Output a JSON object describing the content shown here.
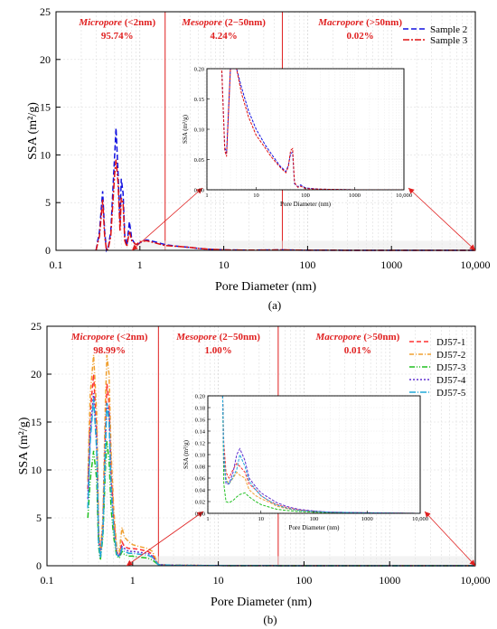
{
  "chart_data": [
    {
      "type": "line",
      "panel_label": "(a)",
      "xlabel": "Pore Diameter (nm)",
      "ylabel": "SSA (m²/g)",
      "xscale": "log",
      "xlim": [
        0.1,
        10000
      ],
      "ylim": [
        0,
        25
      ],
      "x_ticks": [
        "0.1",
        "1",
        "10",
        "100",
        "1000",
        "10,000"
      ],
      "y_ticks": [
        "0",
        "5",
        "10",
        "15",
        "20",
        "25"
      ],
      "grid": true,
      "legend_position": "top-right",
      "boundaries": [
        2,
        50
      ],
      "regions": [
        {
          "name": "Micropore",
          "range": " (<2nm)",
          "percent": "95.74%"
        },
        {
          "name": "Mesopore",
          "range": " (2−50nm)",
          "percent": "4.24%"
        },
        {
          "name": "Macropore",
          "range": " (>50nm)",
          "percent": "0.02%"
        }
      ],
      "series": [
        {
          "name": "Sample 2",
          "color": "#1010e0",
          "dash": "6,3",
          "x": [
            0.3,
            0.33,
            0.36,
            0.38,
            0.4,
            0.42,
            0.45,
            0.5,
            0.52,
            0.55,
            0.58,
            0.6,
            0.63,
            0.66,
            0.7,
            0.75,
            0.8,
            0.9,
            1.0,
            1.2,
            1.5,
            2.0,
            3,
            4,
            5,
            7,
            10,
            20,
            50,
            100,
            1000,
            10000
          ],
          "y": [
            0,
            2,
            6.2,
            2,
            0,
            0.3,
            2,
            10,
            12.8,
            8,
            3,
            7.5,
            6,
            1.5,
            0.5,
            3,
            1.2,
            0.5,
            0.8,
            1.1,
            0.9,
            0.6,
            0.4,
            0.3,
            0.2,
            0.1,
            0.05,
            0.02,
            0.05,
            0.01,
            0,
            0
          ]
        },
        {
          "name": "Sample 3",
          "color": "#e01010",
          "dash": "7,2,2,2",
          "x": [
            0.3,
            0.33,
            0.36,
            0.38,
            0.4,
            0.42,
            0.45,
            0.5,
            0.52,
            0.55,
            0.58,
            0.6,
            0.63,
            0.66,
            0.7,
            0.75,
            0.8,
            0.9,
            1.0,
            1.2,
            1.5,
            2.0,
            3,
            4,
            5,
            7,
            10,
            20,
            50,
            100,
            1000,
            10000
          ],
          "y": [
            0,
            1.5,
            5.3,
            1.5,
            0,
            0.2,
            1.5,
            8,
            9.5,
            7,
            2,
            5.5,
            5,
            1,
            0.4,
            2,
            1,
            0.6,
            0.9,
            1,
            0.8,
            0.5,
            0.4,
            0.3,
            0.2,
            0.1,
            0.05,
            0.02,
            0.05,
            0.01,
            0,
            0
          ]
        }
      ],
      "inset": {
        "xlabel": "Pore Diameter (nm)",
        "ylabel": "SSA (m²/g)",
        "xlim": [
          1,
          10000
        ],
        "ylim": [
          0,
          0.2
        ],
        "x_ticks": [
          "1",
          "10",
          "100",
          "1000",
          "10,000"
        ],
        "y_ticks": [
          "0.00",
          "0.05",
          "0.10",
          "0.15",
          "0.20"
        ],
        "series": [
          {
            "name": "Sample 2",
            "color": "#1010e0",
            "x": [
              1.8,
              2,
              2.3,
              2.5,
              3,
              3.5,
              4,
              5,
              7,
              10,
              15,
              20,
              30,
              40,
              45,
              50,
              55,
              60,
              70,
              80,
              100,
              200,
              1000,
              10000
            ],
            "y": [
              0.2,
              0.2,
              0.07,
              0.06,
              0.2,
              0.2,
              0.2,
              0.17,
              0.13,
              0.1,
              0.075,
              0.06,
              0.04,
              0.03,
              0.04,
              0.06,
              0.062,
              0.01,
              0.005,
              0.008,
              0.003,
              0.001,
              0,
              0
            ]
          },
          {
            "name": "Sample 3",
            "color": "#e01010",
            "x": [
              1.8,
              2,
              2.3,
              2.5,
              3,
              3.5,
              4,
              5,
              7,
              10,
              15,
              20,
              30,
              40,
              45,
              50,
              55,
              60,
              70,
              80,
              100,
              200,
              1000,
              10000
            ],
            "y": [
              0.2,
              0.2,
              0.065,
              0.055,
              0.2,
              0.2,
              0.2,
              0.16,
              0.12,
              0.09,
              0.07,
              0.055,
              0.038,
              0.028,
              0.038,
              0.065,
              0.068,
              0.012,
              0.004,
              0.006,
              0.002,
              0.001,
              0,
              0
            ]
          }
        ]
      }
    },
    {
      "type": "line",
      "panel_label": "(b)",
      "xlabel": "Pore Diameter (nm)",
      "ylabel": "SSA (m²/g)",
      "xscale": "log",
      "xlim": [
        0.1,
        10000
      ],
      "ylim": [
        0,
        25
      ],
      "x_ticks": [
        "0.1",
        "1",
        "10",
        "100",
        "1000",
        "10,000"
      ],
      "y_ticks": [
        "0",
        "5",
        "10",
        "15",
        "20",
        "25"
      ],
      "grid": true,
      "legend_position": "top-right",
      "boundaries": [
        2,
        50
      ],
      "regions": [
        {
          "name": "Micropore",
          "range": " (<2nm)",
          "percent": "98.99%"
        },
        {
          "name": "Mesopore",
          "range": " (2−50nm)",
          "percent": "1.00%"
        },
        {
          "name": "Macropore",
          "range": " (>50nm)",
          "percent": "0.01%"
        }
      ],
      "series": [
        {
          "name": "DJ57-1",
          "color": "#ff3030",
          "dash": "5,3",
          "x": [
            0.3,
            0.32,
            0.35,
            0.38,
            0.4,
            0.42,
            0.45,
            0.48,
            0.5,
            0.53,
            0.56,
            0.6,
            0.65,
            0.7,
            0.75,
            0.8,
            0.9,
            1.0,
            1.2,
            1.5,
            1.7,
            2.0,
            3,
            10,
            100,
            10000
          ],
          "y": [
            8,
            16,
            20,
            14,
            3,
            1,
            4,
            14,
            19,
            17,
            10,
            5,
            1.5,
            1,
            2.5,
            2,
            1.8,
            1.8,
            1.7,
            1.5,
            1.2,
            0.1,
            0.05,
            0.02,
            0,
            0
          ]
        },
        {
          "name": "DJ57-2",
          "color": "#f0a030",
          "dash": "5,2,1,2",
          "x": [
            0.3,
            0.32,
            0.35,
            0.38,
            0.4,
            0.42,
            0.45,
            0.48,
            0.5,
            0.53,
            0.56,
            0.6,
            0.65,
            0.7,
            0.75,
            0.8,
            0.9,
            1.0,
            1.2,
            1.5,
            1.7,
            2.0,
            3,
            10,
            100,
            10000
          ],
          "y": [
            9,
            18,
            22,
            16,
            4,
            1.5,
            5,
            17,
            22,
            20,
            12,
            6,
            2,
            1.5,
            4,
            3,
            2.5,
            2.2,
            2,
            1.8,
            1.5,
            0.1,
            0.05,
            0.02,
            0,
            0
          ]
        },
        {
          "name": "DJ57-3",
          "color": "#20c020",
          "dash": "6,2,1,2,1,2",
          "x": [
            0.3,
            0.32,
            0.35,
            0.38,
            0.4,
            0.42,
            0.45,
            0.48,
            0.5,
            0.53,
            0.56,
            0.6,
            0.65,
            0.7,
            0.75,
            0.8,
            0.9,
            1.0,
            1.2,
            1.5,
            1.7,
            2.0,
            3,
            10,
            100,
            10000
          ],
          "y": [
            5,
            9,
            12,
            9,
            2,
            0.6,
            3,
            10,
            13,
            11,
            6,
            3,
            1,
            0.8,
            1.5,
            1.2,
            1,
            1,
            0.9,
            0.8,
            0.6,
            0.1,
            0.04,
            0.02,
            0,
            0
          ]
        },
        {
          "name": "DJ57-4",
          "color": "#6030d0",
          "dash": "2,2",
          "x": [
            0.3,
            0.32,
            0.35,
            0.38,
            0.4,
            0.42,
            0.45,
            0.48,
            0.5,
            0.53,
            0.56,
            0.6,
            0.65,
            0.7,
            0.75,
            0.8,
            0.9,
            1.0,
            1.2,
            1.5,
            1.7,
            2.0,
            3,
            10,
            100,
            10000
          ],
          "y": [
            7,
            14,
            18,
            13,
            3,
            1,
            4,
            13,
            17,
            16,
            9,
            4,
            1.3,
            1,
            2,
            1.8,
            1.5,
            1.5,
            1.4,
            1.3,
            1,
            0.1,
            0.05,
            0.02,
            0,
            0
          ]
        },
        {
          "name": "DJ57-5",
          "color": "#20a8d8",
          "dash": "7,2,1,2",
          "x": [
            0.3,
            0.32,
            0.35,
            0.38,
            0.4,
            0.42,
            0.45,
            0.48,
            0.5,
            0.53,
            0.56,
            0.6,
            0.65,
            0.7,
            0.75,
            0.8,
            0.9,
            1.0,
            1.2,
            1.5,
            1.7,
            2.0,
            3,
            10,
            100,
            10000
          ],
          "y": [
            6,
            13,
            17.5,
            12,
            2.5,
            0.8,
            3.5,
            12,
            17,
            15,
            8,
            4,
            1.2,
            0.9,
            1.8,
            1.5,
            1.3,
            1.3,
            1.2,
            1.1,
            0.9,
            0.1,
            0.04,
            0.02,
            0,
            0
          ]
        }
      ],
      "inset": {
        "xlabel": "Pore Diameter (nm)",
        "ylabel": "SSA (m²/g)",
        "xlim": [
          1,
          10000
        ],
        "ylim": [
          0,
          0.2
        ],
        "x_ticks": [
          "1",
          "10",
          "100",
          "1000",
          "10,000"
        ],
        "y_ticks": [
          "0.00",
          "0.02",
          "0.04",
          "0.06",
          "0.08",
          "0.10",
          "0.12",
          "0.14",
          "0.16",
          "0.18",
          "0.20"
        ],
        "series": [
          {
            "name": "DJ57-1",
            "color": "#ff3030",
            "x": [
              1.9,
              2,
              2.2,
              2.5,
              3,
              3.5,
              4,
              5,
              6,
              8,
              10,
              15,
              20,
              30,
              50,
              100,
              200,
              1000,
              10000
            ],
            "y": [
              0.2,
              0.12,
              0.07,
              0.06,
              0.075,
              0.085,
              0.08,
              0.07,
              0.05,
              0.04,
              0.03,
              0.02,
              0.015,
              0.01,
              0.006,
              0.003,
              0.002,
              0.001,
              0
            ]
          },
          {
            "name": "DJ57-2",
            "color": "#f0a030",
            "x": [
              1.9,
              2,
              2.2,
              2.5,
              3,
              3.5,
              4,
              5,
              6,
              8,
              10,
              15,
              20,
              30,
              50,
              100,
              200,
              1000,
              10000
            ],
            "y": [
              0.2,
              0.1,
              0.06,
              0.05,
              0.06,
              0.07,
              0.065,
              0.06,
              0.04,
              0.03,
              0.025,
              0.018,
              0.012,
              0.008,
              0.005,
              0.003,
              0.002,
              0.001,
              0
            ]
          },
          {
            "name": "DJ57-3",
            "color": "#20c020",
            "x": [
              1.9,
              2,
              2.2,
              2.5,
              3,
              3.5,
              4,
              5,
              6,
              8,
              10,
              15,
              20,
              30,
              50,
              100,
              200,
              1000,
              10000
            ],
            "y": [
              0.2,
              0.05,
              0.02,
              0.018,
              0.022,
              0.028,
              0.032,
              0.035,
              0.028,
              0.02,
              0.015,
              0.01,
              0.007,
              0.005,
              0.003,
              0.002,
              0.001,
              0,
              0
            ]
          },
          {
            "name": "DJ57-4",
            "color": "#6030d0",
            "x": [
              1.9,
              2,
              2.2,
              2.5,
              3,
              3.5,
              4,
              5,
              6,
              8,
              10,
              15,
              20,
              30,
              50,
              100,
              200,
              1000,
              10000
            ],
            "y": [
              0.2,
              0.09,
              0.05,
              0.05,
              0.07,
              0.1,
              0.11,
              0.09,
              0.06,
              0.045,
              0.035,
              0.025,
              0.018,
              0.012,
              0.007,
              0.004,
              0.002,
              0.001,
              0
            ]
          },
          {
            "name": "DJ57-5",
            "color": "#20a8d8",
            "x": [
              1.9,
              2,
              2.2,
              2.5,
              3,
              3.5,
              4,
              5,
              6,
              8,
              10,
              15,
              20,
              30,
              50,
              100,
              200,
              1000,
              10000
            ],
            "y": [
              0.2,
              0.1,
              0.055,
              0.05,
              0.062,
              0.075,
              0.1,
              0.08,
              0.055,
              0.04,
              0.03,
              0.02,
              0.014,
              0.009,
              0.005,
              0.003,
              0.002,
              0.001,
              0
            ]
          }
        ]
      }
    }
  ]
}
